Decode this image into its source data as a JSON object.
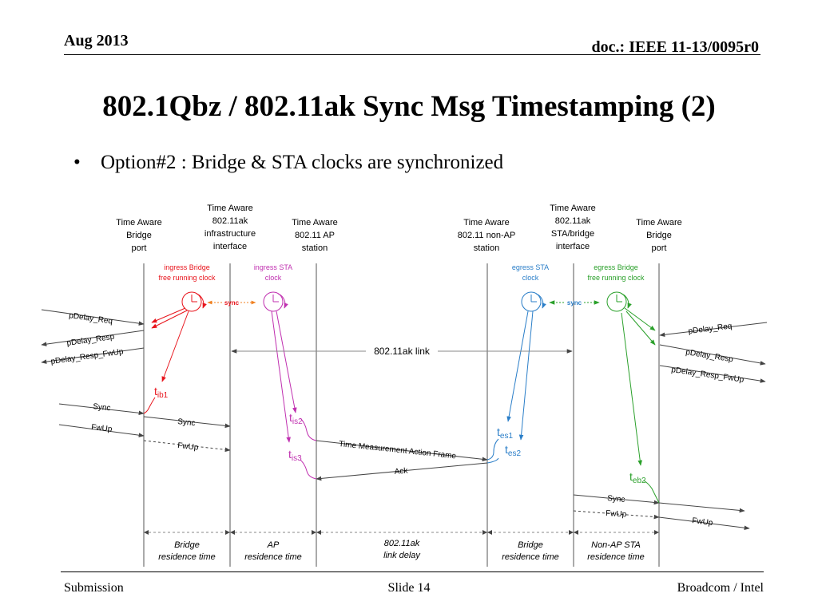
{
  "header": {
    "date": "Aug 2013",
    "doc": "doc.: IEEE 11-13/0095r0"
  },
  "title": "802.1Qbz / 802.11ak Sync Msg Timestamping (2)",
  "bullet": "Option#2 : Bridge & STA clocks are synchronized",
  "columns": [
    {
      "lines": [
        "Time Aware",
        "Bridge",
        "port"
      ]
    },
    {
      "lines": [
        "Time Aware",
        "802.11ak",
        "infrastructure",
        "interface"
      ]
    },
    {
      "lines": [
        "Time Aware",
        "802.11 AP",
        "station"
      ]
    },
    {
      "lines": [
        "Time Aware",
        "802.11 non-AP",
        "station"
      ]
    },
    {
      "lines": [
        "Time Aware",
        "802.11ak",
        "STA/bridge",
        "interface"
      ]
    },
    {
      "lines": [
        "Time Aware",
        "Bridge",
        "port"
      ]
    }
  ],
  "clocks": {
    "ingress_bridge": [
      "ingress Bridge",
      "free running clock"
    ],
    "ingress_sta": [
      "ingress STA",
      "clock"
    ],
    "egress_sta": [
      "egress STA",
      "clock"
    ],
    "egress_bridge": [
      "egress Bridge",
      "free running clock"
    ],
    "sync_label": "sync"
  },
  "link_label": "802.11ak link",
  "messages": {
    "pdelay_req": "pDelay_Req",
    "pdelay_resp": "pDelay_Resp",
    "pdelay_resp_fwup": "pDelay_Resp_FwUp",
    "sync": "Sync",
    "fwup": "FwUp",
    "tmaf": "Time Measurement Action Frame",
    "ack": "Ack"
  },
  "timestamps": {
    "t_ib1": {
      "base": "t",
      "sub": "ib1"
    },
    "t_is2": {
      "base": "t",
      "sub": "is2"
    },
    "t_is3": {
      "base": "t",
      "sub": "is3"
    },
    "t_es1": {
      "base": "t",
      "sub": "es1"
    },
    "t_es2": {
      "base": "t",
      "sub": "es2"
    },
    "t_eb2": {
      "base": "t",
      "sub": "eb2"
    }
  },
  "segments": [
    [
      "Bridge",
      "residence time"
    ],
    [
      "AP",
      "residence time"
    ],
    [
      "802.11ak",
      "link delay"
    ],
    [
      "Bridge",
      "residence time"
    ],
    [
      "Non-AP STA",
      "residence time"
    ]
  ],
  "colors": {
    "red": "#e8141c",
    "magenta": "#c030b0",
    "blue": "#2a7ec8",
    "green": "#2aa02a",
    "orange": "#f08020",
    "gray": "#444444"
  },
  "footer": {
    "left": "Submission",
    "center": "Slide 14",
    "right": "Broadcom / Intel"
  }
}
